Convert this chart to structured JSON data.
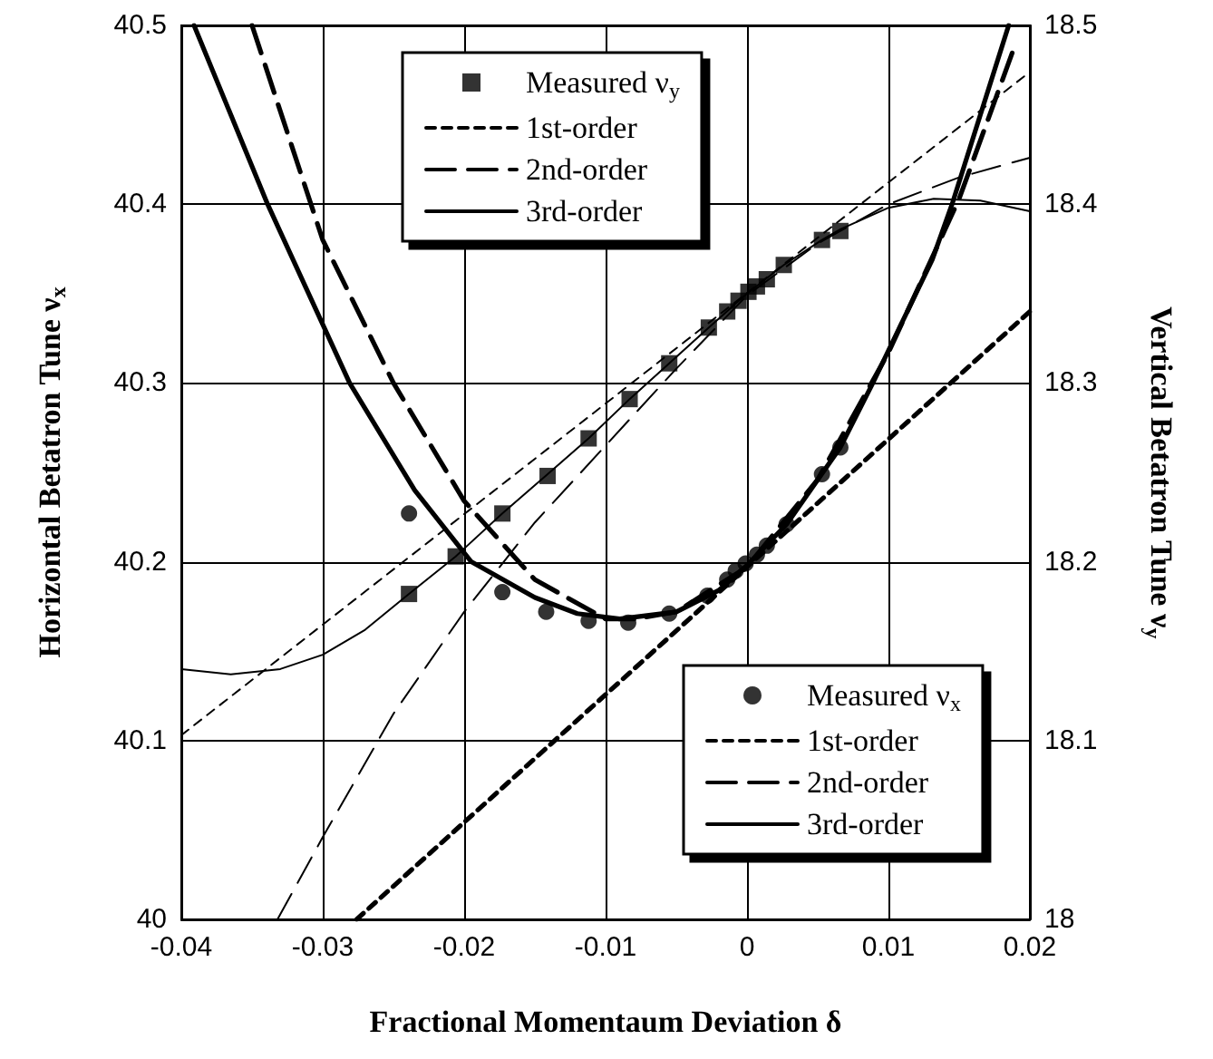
{
  "chart_data": {
    "type": "line",
    "xlabel": "Fractional Momentaum Deviation δ",
    "ylabel": "Horizontal Betatron Tune ν$_{x}$",
    "y2label": "Vertical Betatron Tune ν$_{y}$",
    "xlim": [
      -0.04,
      0.02
    ],
    "xticks": [
      -0.04,
      -0.03,
      -0.02,
      -0.01,
      0,
      0.01,
      0.02
    ],
    "ylim": [
      40,
      40.5
    ],
    "yticks": [
      40,
      40.1,
      40.2,
      40.3,
      40.4,
      40.5
    ],
    "y2lim": [
      18,
      18.5
    ],
    "y2ticks": [
      18,
      18.1,
      18.2,
      18.3,
      18.4,
      18.5
    ],
    "grid": true,
    "legend": [
      "bottom right",
      "top"
    ],
    "series": [
      {
        "name": "Measured ν$_{x}$",
        "type": "scatter",
        "marker": "circle",
        "color": "#000000",
        "x": [
          -0.0239,
          -0.0173,
          -0.0142,
          -0.0112,
          -0.0084,
          -0.0055,
          -0.0028,
          -0.0014,
          -0.0008,
          -0.0001,
          0.0007,
          0.0014,
          0.0028,
          0.0053,
          0.0066
        ],
        "values": [
          40.227,
          40.183,
          40.172,
          40.167,
          40.166,
          40.171,
          40.181,
          40.19,
          40.195,
          40.199,
          40.204,
          40.209,
          40.221,
          40.249,
          40.264
        ]
      },
      {
        "name": "1st-order",
        "line_style": "dotted",
        "color": "#000000",
        "x": [
          -0.0276,
          0.02
        ],
        "values": [
          40,
          40.34
        ]
      },
      {
        "name": "2nd-order",
        "line_style": "dashed",
        "color": "#000000",
        "x": [
          -0.035,
          -0.03,
          -0.025,
          -0.02,
          -0.015,
          -0.01,
          -0.008,
          -0.005,
          0,
          0.005,
          0.01,
          0.015,
          0.019
        ],
        "values": [
          40.5,
          40.38,
          40.3,
          40.234,
          40.19,
          40.168,
          40.168,
          40.172,
          40.197,
          40.246,
          40.317,
          40.403,
          40.49
        ]
      },
      {
        "name": "3rd-order",
        "line_style": "solid",
        "color": "#000000",
        "x": [
          -0.0391,
          -0.0339,
          -0.0281,
          -0.0235,
          -0.0195,
          -0.015,
          -0.012,
          -0.009,
          -0.005,
          -0.002,
          0,
          0.0028,
          0.0066,
          0.0089,
          0.0131,
          0.0145,
          0.0185
        ],
        "values": [
          40.5,
          40.4,
          40.3,
          40.24,
          40.2,
          40.18,
          40.171,
          40.168,
          40.172,
          40.184,
          40.198,
          40.221,
          40.264,
          40.3,
          40.369,
          40.4,
          40.5
        ]
      },
      {
        "name": "Measured ν$_{y}$",
        "type": "scatter",
        "marker": "square",
        "axis": "y2",
        "color": "#000000",
        "x": [
          -0.0239,
          -0.0206,
          -0.0173,
          -0.0141,
          -0.0112,
          -0.0083,
          -0.0055,
          -0.0027,
          -0.0014,
          -0.0006,
          0.0001,
          0.0007,
          0.0014,
          0.0026,
          0.0053,
          0.0066
        ],
        "values": [
          18.182,
          18.203,
          18.227,
          18.248,
          18.269,
          18.291,
          18.311,
          18.331,
          18.34,
          18.346,
          18.351,
          18.354,
          18.358,
          18.366,
          18.38,
          18.385
        ]
      },
      {
        "name": "1st-order",
        "line_style": "dotted",
        "axis": "y2",
        "color": "#000000",
        "x": [
          -0.04,
          0.02
        ],
        "values": [
          18.103,
          18.474
        ]
      },
      {
        "name": "2nd-order",
        "line_style": "dashed",
        "axis": "y2",
        "color": "#000000",
        "x": [
          -0.0332,
          -0.03,
          -0.025,
          -0.02,
          -0.015,
          -0.01,
          -0.005,
          0,
          0.005,
          0.01,
          0.015,
          0.02
        ],
        "values": [
          18,
          18.046,
          18.115,
          18.172,
          18.222,
          18.265,
          18.308,
          18.349,
          18.378,
          18.4,
          18.415,
          18.426
        ]
      },
      {
        "name": "3rd-order",
        "line_style": "solid",
        "axis": "y2",
        "color": "#000000",
        "x": [
          -0.04,
          -0.0365,
          -0.033,
          -0.03,
          -0.027,
          -0.0239,
          -0.0206,
          -0.0173,
          -0.0141,
          -0.0112,
          -0.0083,
          -0.0055,
          -0.0027,
          0,
          0.0026,
          0.0053,
          0.0066,
          0.01,
          0.0132,
          0.0165,
          0.02
        ],
        "values": [
          18.14,
          18.137,
          18.14,
          18.148,
          18.162,
          18.182,
          18.203,
          18.227,
          18.249,
          18.269,
          18.291,
          18.311,
          18.331,
          18.35,
          18.366,
          18.38,
          18.386,
          18.398,
          18.403,
          18.402,
          18.396
        ]
      }
    ]
  }
}
